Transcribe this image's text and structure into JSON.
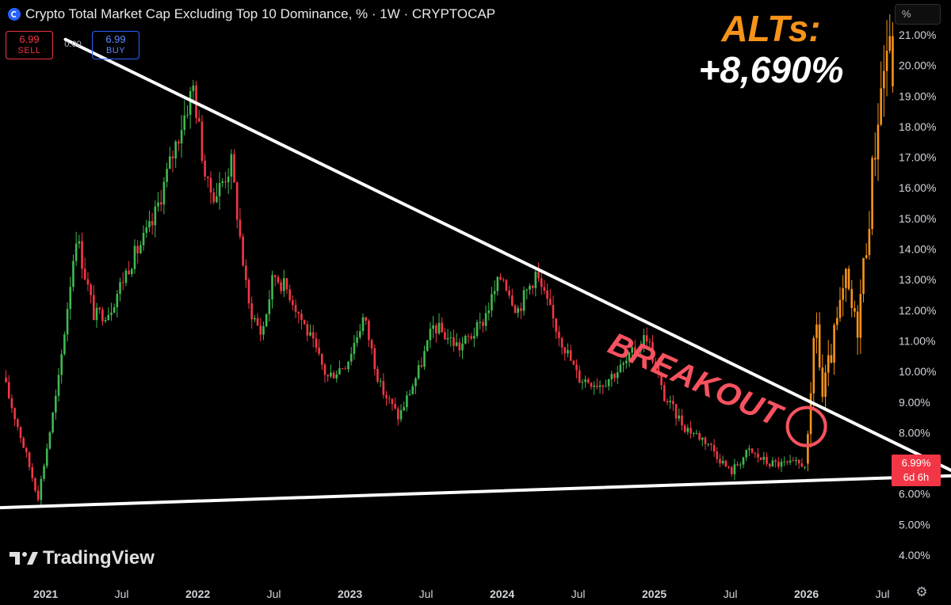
{
  "header": {
    "title": "Crypto Total Market Cap Excluding Top 10 Dominance, % · 1W · CRYPTOCAP",
    "scale_button": "%"
  },
  "trade": {
    "sell_price": "6.99",
    "sell_label": "SELL",
    "spread": "0.00",
    "buy_price": "6.99",
    "buy_label": "BUY"
  },
  "annotations": {
    "alts_line1": "ALTs:",
    "alts_line2": "+8,690%",
    "breakout": "BREAKOUT"
  },
  "price_label": {
    "value": "6.99%",
    "countdown": "6d 6h"
  },
  "branding": {
    "logo_text": "TradingView"
  },
  "colors": {
    "up": "#26a69a",
    "up_green": "#3fb950",
    "down": "#f23645",
    "projection": "#f7931a",
    "trendline": "#ffffff",
    "breakout_circle": "#f7525f"
  },
  "chart_data": {
    "type": "candlestick",
    "title": "Crypto Total Market Cap Excluding Top 10 Dominance, % · 1W · CRYPTOCAP",
    "y_ticks": [
      "21.00%",
      "20.00%",
      "19.00%",
      "18.00%",
      "17.00%",
      "16.00%",
      "15.00%",
      "14.00%",
      "13.00%",
      "12.00%",
      "11.00%",
      "10.00%",
      "9.00%",
      "8.00%",
      "7.00%",
      "6.00%",
      "5.00%",
      "4.00%"
    ],
    "ylim": [
      3.5,
      21.4
    ],
    "x_ticks": [
      {
        "t": 2021.0,
        "label": "2021"
      },
      {
        "t": 2021.5,
        "label": "Jul"
      },
      {
        "t": 2022.0,
        "label": "2022"
      },
      {
        "t": 2022.5,
        "label": "Jul"
      },
      {
        "t": 2023.0,
        "label": "2023"
      },
      {
        "t": 2023.5,
        "label": "Jul"
      },
      {
        "t": 2024.0,
        "label": "2024"
      },
      {
        "t": 2024.5,
        "label": "Jul"
      },
      {
        "t": 2025.0,
        "label": "2025"
      },
      {
        "t": 2025.5,
        "label": "Jul"
      },
      {
        "t": 2026.0,
        "label": "2026"
      },
      {
        "t": 2026.5,
        "label": "Jul"
      }
    ],
    "xlim": [
      2020.7,
      2026.95
    ],
    "history_close_path": [
      [
        2020.72,
        9.8
      ],
      [
        2020.83,
        8.0
      ],
      [
        2020.95,
        5.9
      ],
      [
        2021.08,
        9.5
      ],
      [
        2021.2,
        14.5
      ],
      [
        2021.32,
        11.8
      ],
      [
        2021.42,
        12.0
      ],
      [
        2021.55,
        13.5
      ],
      [
        2021.7,
        14.8
      ],
      [
        2021.9,
        18.2
      ],
      [
        2021.97,
        19.3
      ],
      [
        2022.06,
        16.0
      ],
      [
        2022.12,
        15.8
      ],
      [
        2022.22,
        16.8
      ],
      [
        2022.33,
        12.2
      ],
      [
        2022.42,
        11.2
      ],
      [
        2022.5,
        13.2
      ],
      [
        2022.6,
        12.6
      ],
      [
        2022.72,
        11.3
      ],
      [
        2022.85,
        9.8
      ],
      [
        2022.98,
        10.3
      ],
      [
        2023.09,
        11.8
      ],
      [
        2023.2,
        9.5
      ],
      [
        2023.32,
        8.5
      ],
      [
        2023.45,
        10.0
      ],
      [
        2023.55,
        11.5
      ],
      [
        2023.72,
        10.8
      ],
      [
        2023.86,
        11.5
      ],
      [
        2024.0,
        13.2
      ],
      [
        2024.1,
        12.0
      ],
      [
        2024.22,
        13.2
      ],
      [
        2024.35,
        11.5
      ],
      [
        2024.5,
        9.8
      ],
      [
        2024.65,
        9.6
      ],
      [
        2024.8,
        10.2
      ],
      [
        2024.95,
        11.2
      ],
      [
        2025.06,
        9.2
      ],
      [
        2025.2,
        8.2
      ],
      [
        2025.35,
        7.7
      ],
      [
        2025.5,
        6.7
      ],
      [
        2025.62,
        7.4
      ],
      [
        2025.75,
        7.0
      ],
      [
        2025.9,
        6.95
      ],
      [
        2025.99,
        6.99
      ]
    ],
    "projection_close_path": [
      [
        2025.99,
        6.99
      ],
      [
        2026.02,
        8.0
      ],
      [
        2026.06,
        12.3
      ],
      [
        2026.1,
        9.0
      ],
      [
        2026.14,
        10.0
      ],
      [
        2026.2,
        11.5
      ],
      [
        2026.26,
        12.9
      ],
      [
        2026.33,
        11.3
      ],
      [
        2026.4,
        14.6
      ],
      [
        2026.47,
        18.5
      ],
      [
        2026.53,
        20.7
      ],
      [
        2026.57,
        19.8
      ]
    ],
    "trendlines": [
      {
        "name": "resistance",
        "from": [
          2021.13,
          20.85
        ],
        "to": [
          2027.0,
          6.65
        ]
      },
      {
        "name": "support",
        "from": [
          2020.7,
          5.55
        ],
        "to": [
          2027.0,
          6.6
        ]
      }
    ],
    "breakout_point": {
      "t": 2026.0,
      "y": 8.2
    },
    "last_value": 6.99,
    "grid": false,
    "legend": "none"
  }
}
